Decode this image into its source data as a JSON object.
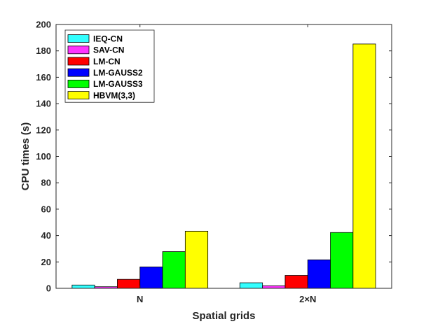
{
  "chart_data": {
    "type": "bar",
    "categories": [
      "N",
      "2×N"
    ],
    "xlabel": "Spatial grids",
    "ylabel": "CPU times (s)",
    "ylim": [
      0,
      200
    ],
    "yticks": [
      0,
      20,
      40,
      60,
      80,
      100,
      120,
      140,
      160,
      180,
      200
    ],
    "grid": false,
    "legend_position": "top-left",
    "series": [
      {
        "name": "IEQ-CN",
        "color": "#33ffff",
        "values": [
          2.5,
          4.2
        ]
      },
      {
        "name": "SAV-CN",
        "color": "#ff33ff",
        "values": [
          1.2,
          1.9
        ]
      },
      {
        "name": "LM-CN",
        "color": "#ff0000",
        "values": [
          6.8,
          9.8
        ]
      },
      {
        "name": "LM-GAUSS2",
        "color": "#0000ff",
        "values": [
          16.2,
          21.6
        ]
      },
      {
        "name": "LM-GAUSS3",
        "color": "#00ff00",
        "values": [
          27.8,
          42.3
        ]
      },
      {
        "name": "HBVM(3,3)",
        "color": "#ffff00",
        "values": [
          43.3,
          185.2
        ]
      }
    ]
  }
}
